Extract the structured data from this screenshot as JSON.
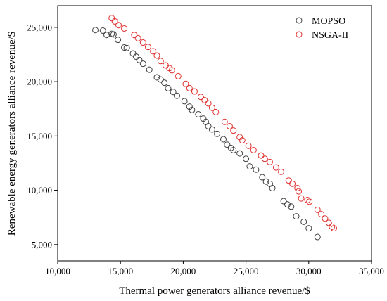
{
  "chart_data": {
    "type": "scatter",
    "title": "",
    "xlabel": "Thermal power generators alliance revenue/$",
    "ylabel": "Renewable energy generators alliance revenue/$",
    "xlim": [
      10000,
      35000
    ],
    "ylim": [
      3500,
      27000
    ],
    "xticks": [
      10000,
      15000,
      20000,
      25000,
      30000,
      35000
    ],
    "yticks": [
      5000,
      10000,
      15000,
      20000,
      25000
    ],
    "xtick_labels": [
      "10,000",
      "15,000",
      "20,000",
      "25,000",
      "30,000",
      "35,000"
    ],
    "ytick_labels": [
      "5,000",
      "10,000",
      "15,000",
      "20,000",
      "25,000"
    ],
    "grid": false,
    "legend_position": "top-right",
    "series": [
      {
        "name": "MOPSO",
        "color": "#404040",
        "marker": "open-circle",
        "points": [
          [
            13000,
            24750
          ],
          [
            13600,
            24700
          ],
          [
            13900,
            24300
          ],
          [
            14300,
            24400
          ],
          [
            14450,
            24350
          ],
          [
            14800,
            23850
          ],
          [
            15300,
            23150
          ],
          [
            15500,
            23100
          ],
          [
            16000,
            22600
          ],
          [
            16250,
            22300
          ],
          [
            16500,
            22000
          ],
          [
            16800,
            21650
          ],
          [
            17300,
            21100
          ],
          [
            17900,
            20400
          ],
          [
            18200,
            20200
          ],
          [
            18500,
            19900
          ],
          [
            18800,
            19400
          ],
          [
            19200,
            19050
          ],
          [
            19500,
            18700
          ],
          [
            20100,
            18200
          ],
          [
            20500,
            17700
          ],
          [
            20700,
            17400
          ],
          [
            21200,
            17000
          ],
          [
            21600,
            16600
          ],
          [
            21800,
            16300
          ],
          [
            22000,
            15900
          ],
          [
            22300,
            15600
          ],
          [
            22700,
            15200
          ],
          [
            23200,
            14700
          ],
          [
            23500,
            14200
          ],
          [
            23800,
            13900
          ],
          [
            24000,
            13700
          ],
          [
            24500,
            13400
          ],
          [
            25000,
            12900
          ],
          [
            25300,
            12200
          ],
          [
            25800,
            11900
          ],
          [
            26300,
            11200
          ],
          [
            26600,
            10800
          ],
          [
            26900,
            10600
          ],
          [
            27100,
            10200
          ],
          [
            28000,
            9000
          ],
          [
            28300,
            8700
          ],
          [
            28600,
            8500
          ],
          [
            29000,
            7600
          ],
          [
            29600,
            7100
          ],
          [
            30000,
            6500
          ],
          [
            30700,
            5700
          ]
        ]
      },
      {
        "name": "NSGA-II",
        "color": "#e03030",
        "marker": "open-circle",
        "points": [
          [
            14300,
            25850
          ],
          [
            14550,
            25550
          ],
          [
            14850,
            25200
          ],
          [
            15300,
            24900
          ],
          [
            16100,
            24300
          ],
          [
            16400,
            24000
          ],
          [
            16800,
            23600
          ],
          [
            17200,
            23200
          ],
          [
            17600,
            22800
          ],
          [
            17900,
            22400
          ],
          [
            18200,
            21900
          ],
          [
            18600,
            21500
          ],
          [
            18900,
            21250
          ],
          [
            19100,
            21050
          ],
          [
            19600,
            20500
          ],
          [
            20200,
            19800
          ],
          [
            20500,
            19400
          ],
          [
            20900,
            19100
          ],
          [
            21400,
            18600
          ],
          [
            21700,
            18300
          ],
          [
            22000,
            18000
          ],
          [
            22300,
            17600
          ],
          [
            22600,
            17200
          ],
          [
            23300,
            16300
          ],
          [
            23700,
            15900
          ],
          [
            24000,
            15500
          ],
          [
            24500,
            14900
          ],
          [
            24700,
            14600
          ],
          [
            25200,
            14100
          ],
          [
            25600,
            13700
          ],
          [
            26200,
            13200
          ],
          [
            26500,
            12900
          ],
          [
            26900,
            12600
          ],
          [
            27400,
            12100
          ],
          [
            27800,
            11700
          ],
          [
            28400,
            10900
          ],
          [
            28700,
            10600
          ],
          [
            29100,
            10200
          ],
          [
            29200,
            9900
          ],
          [
            29400,
            9250
          ],
          [
            29900,
            9100
          ],
          [
            30050,
            8950
          ],
          [
            30700,
            8200
          ],
          [
            31000,
            7800
          ],
          [
            31300,
            7400
          ],
          [
            31600,
            7000
          ],
          [
            31850,
            6650
          ],
          [
            32000,
            6500
          ]
        ]
      }
    ]
  }
}
